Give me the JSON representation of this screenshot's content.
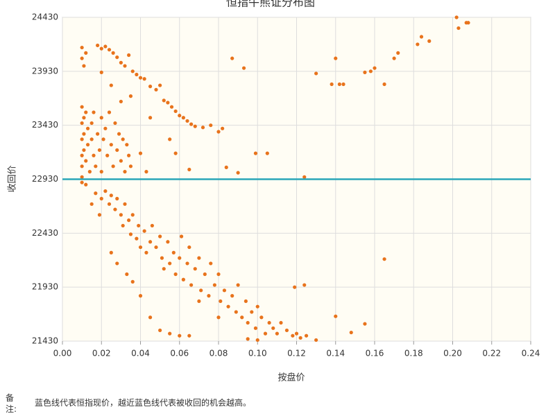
{
  "chart_data": {
    "type": "scatter",
    "title": "恒指牛熊证分布图",
    "x_label": "按盘价",
    "y_label": "收回价",
    "color": "#e8731c",
    "grid": true,
    "reference_line": {
      "value": 22930,
      "color": "#2aa7b8"
    },
    "xlim": [
      0,
      0.24
    ],
    "ylim": [
      21430,
      24430
    ],
    "xticks": [
      {
        "value": 0,
        "label": "0.00"
      },
      {
        "value": 0.02,
        "label": "0.02"
      },
      {
        "value": 0.04,
        "label": "0.04"
      },
      {
        "value": 0.06,
        "label": "0.06"
      },
      {
        "value": 0.08,
        "label": "0.08"
      },
      {
        "value": 0.1,
        "label": "0.10"
      },
      {
        "value": 0.12,
        "label": "0.12"
      },
      {
        "value": 0.14,
        "label": "0.14"
      },
      {
        "value": 0.16,
        "label": "0.16"
      },
      {
        "value": 0.18,
        "label": "0.18"
      },
      {
        "value": 0.2,
        "label": "0.20"
      },
      {
        "value": 0.22,
        "label": "0.22"
      },
      {
        "value": 0.24,
        "label": "0.24"
      }
    ],
    "yticks": [
      21430,
      21930,
      22430,
      22930,
      23430,
      23930,
      24430
    ],
    "x": [
      0.01,
      0.01,
      0.01,
      0.01,
      0.01,
      0.01,
      0.011,
      0.011,
      0.011,
      0.012,
      0.012,
      0.013,
      0.013,
      0.014,
      0.015,
      0.015,
      0.016,
      0.016,
      0.017,
      0.018,
      0.019,
      0.02,
      0.02,
      0.021,
      0.022,
      0.023,
      0.024,
      0.025,
      0.026,
      0.027,
      0.028,
      0.029,
      0.03,
      0.031,
      0.032,
      0.033,
      0.034,
      0.035,
      0.01,
      0.01,
      0.011,
      0.012,
      0.018,
      0.02,
      0.022,
      0.024,
      0.026,
      0.028,
      0.03,
      0.032,
      0.034,
      0.036,
      0.038,
      0.04,
      0.042,
      0.045,
      0.048,
      0.05,
      0.052,
      0.054,
      0.056,
      0.058,
      0.06,
      0.062,
      0.064,
      0.066,
      0.068,
      0.072,
      0.076,
      0.08,
      0.082,
      0.02,
      0.025,
      0.03,
      0.035,
      0.045,
      0.055,
      0.04,
      0.043,
      0.058,
      0.065,
      0.01,
      0.012,
      0.015,
      0.017,
      0.019,
      0.02,
      0.022,
      0.024,
      0.025,
      0.027,
      0.028,
      0.03,
      0.031,
      0.032,
      0.034,
      0.035,
      0.036,
      0.038,
      0.039,
      0.04,
      0.042,
      0.043,
      0.045,
      0.046,
      0.048,
      0.05,
      0.051,
      0.052,
      0.054,
      0.055,
      0.057,
      0.058,
      0.06,
      0.061,
      0.062,
      0.064,
      0.065,
      0.066,
      0.068,
      0.07,
      0.071,
      0.073,
      0.075,
      0.076,
      0.078,
      0.08,
      0.081,
      0.083,
      0.085,
      0.087,
      0.089,
      0.09,
      0.092,
      0.094,
      0.095,
      0.097,
      0.099,
      0.1,
      0.102,
      0.104,
      0.106,
      0.108,
      0.11,
      0.112,
      0.115,
      0.118,
      0.12,
      0.122,
      0.025,
      0.028,
      0.033,
      0.036,
      0.04,
      0.045,
      0.05,
      0.055,
      0.06,
      0.065,
      0.07,
      0.08,
      0.095,
      0.1,
      0.119,
      0.124,
      0.087,
      0.093,
      0.13,
      0.14,
      0.138,
      0.142,
      0.144,
      0.155,
      0.158,
      0.16,
      0.165,
      0.17,
      0.172,
      0.182,
      0.184,
      0.188,
      0.202,
      0.203,
      0.207,
      0.208,
      0.165,
      0.124,
      0.099,
      0.105,
      0.084,
      0.09,
      0.14,
      0.148,
      0.155,
      0.13,
      0.125
    ],
    "values": [
      23600,
      23450,
      23300,
      23150,
      23050,
      22950,
      23500,
      23350,
      23200,
      23100,
      23550,
      23400,
      23250,
      23000,
      23450,
      23300,
      23150,
      23550,
      23050,
      23350,
      23200,
      23500,
      23000,
      23300,
      23400,
      23150,
      23550,
      23250,
      23050,
      23450,
      23200,
      23350,
      23100,
      23300,
      23000,
      23250,
      23150,
      23050,
      24150,
      24050,
      23980,
      24100,
      24170,
      24140,
      24160,
      24130,
      24100,
      24060,
      24010,
      23980,
      24080,
      23930,
      23900,
      23870,
      23860,
      23790,
      23760,
      23800,
      23660,
      23640,
      23600,
      23560,
      23520,
      23500,
      23470,
      23440,
      23420,
      23410,
      23430,
      23370,
      23400,
      23920,
      23800,
      23650,
      23700,
      23500,
      23300,
      23170,
      23000,
      23170,
      23020,
      22900,
      22880,
      22700,
      22800,
      22600,
      22750,
      22820,
      22700,
      22780,
      22650,
      22750,
      22600,
      22500,
      22700,
      22550,
      22420,
      22600,
      22380,
      22500,
      22300,
      22450,
      22250,
      22350,
      22500,
      22300,
      22400,
      22200,
      22100,
      22350,
      22150,
      22250,
      22050,
      22200,
      22400,
      22000,
      22150,
      22300,
      21950,
      22100,
      22200,
      21900,
      22050,
      21850,
      22150,
      21950,
      22050,
      21800,
      21900,
      21750,
      21850,
      21700,
      21950,
      21650,
      21800,
      21600,
      21700,
      21550,
      21750,
      21650,
      21500,
      21600,
      21550,
      21500,
      21600,
      21530,
      21480,
      21500,
      21460,
      22250,
      22150,
      22050,
      21980,
      21850,
      21650,
      21530,
      21500,
      21480,
      21480,
      21800,
      21650,
      21450,
      21440,
      21930,
      21950,
      24050,
      23960,
      23910,
      24050,
      23810,
      23810,
      23810,
      23920,
      23930,
      23960,
      23810,
      24050,
      24100,
      24180,
      24250,
      24210,
      24430,
      24330,
      24380,
      24380,
      22190,
      22950,
      23170,
      23170,
      23040,
      22990,
      21660,
      21510,
      21590,
      21440,
      21480
    ],
    "note_label": "备注:",
    "note": "蓝色线代表恒指现价，越近蓝色线代表被收回的机会越高。"
  }
}
